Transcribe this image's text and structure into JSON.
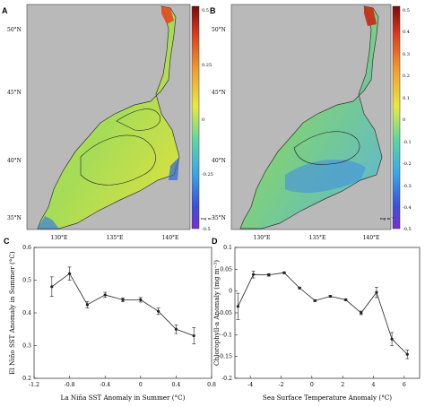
{
  "panels": {
    "A": {
      "letter": "A",
      "lat_labels": [
        "50°N",
        "45°N",
        "40°N",
        "35°N"
      ],
      "lon_labels": [
        "130°E",
        "135°E",
        "140°E"
      ],
      "colorbar": {
        "ticks": [
          "0.5",
          "0.25",
          "0",
          "-0.25",
          "-0.5"
        ],
        "unit": "mg m⁻³"
      },
      "map_type": "chlorophyll-anomaly-map"
    },
    "B": {
      "letter": "B",
      "lat_labels": [
        "50°N",
        "45°N",
        "40°N",
        "35°N"
      ],
      "lon_labels": [
        "130°E",
        "135°E",
        "140°E"
      ],
      "colorbar": {
        "ticks": [
          "0.5",
          "0.4",
          "0.3",
          "0.2",
          "0.1",
          "0",
          "-0.1",
          "-0.2",
          "-0.3",
          "-0.4",
          "-0.5"
        ],
        "unit": "mg m⁻³"
      },
      "map_type": "chlorophyll-anomaly-map"
    },
    "C": {
      "letter": "C"
    },
    "D": {
      "letter": "D"
    }
  },
  "colors": {
    "sea_low": "#3b55d9",
    "sea_mid": "#e6e83a",
    "sea_high": "#9c1d12",
    "land": "#b7b7b7",
    "line": "#222222"
  },
  "chart_data": [
    {
      "type": "line",
      "panel": "C",
      "xlabel": "La Niña SST Anomaly in Summer (°C)",
      "ylabel": "El Niño SST Anomaly in Summer (°C)",
      "xlim": [
        -1.2,
        0.8
      ],
      "ylim": [
        0.2,
        0.6
      ],
      "xticks": [
        "-1.2",
        "-0.8",
        "-0.4",
        "0",
        "0.4",
        "0.8"
      ],
      "yticks": [
        "0.6",
        "0.5",
        "0.4",
        "0.3",
        "0.2"
      ],
      "x": [
        -1.0,
        -0.8,
        -0.6,
        -0.4,
        -0.2,
        0.0,
        0.2,
        0.4,
        0.6
      ],
      "values": [
        0.48,
        0.52,
        0.425,
        0.455,
        0.44,
        0.44,
        0.405,
        0.35,
        0.33
      ],
      "errors": [
        0.03,
        0.02,
        0.01,
        0.008,
        0.006,
        0.007,
        0.01,
        0.013,
        0.025
      ]
    },
    {
      "type": "line",
      "panel": "D",
      "xlabel": "Sea Surface Temperature Anomaly (°C)",
      "ylabel": "Chlorophyll-a Anomaly (mg m⁻³)",
      "xlim": [
        -5,
        7
      ],
      "ylim": [
        -0.2,
        0.1
      ],
      "xticks": [
        "-4",
        "-2",
        "0",
        "2",
        "4",
        "6"
      ],
      "yticks": [
        "0.1",
        "0.05",
        "0",
        "-0.05",
        "-0.1",
        "-0.15",
        "-0.2"
      ],
      "x": [
        -4.8,
        -3.8,
        -2.8,
        -1.8,
        -0.8,
        0.2,
        1.2,
        2.2,
        3.2,
        4.2,
        5.2,
        6.2
      ],
      "values": [
        -0.035,
        0.038,
        0.037,
        0.042,
        0.007,
        -0.022,
        -0.012,
        -0.02,
        -0.05,
        -0.003,
        -0.11,
        -0.145
      ],
      "errors": [
        0.03,
        0.008,
        0.003,
        0.002,
        0.002,
        0.002,
        0.002,
        0.002,
        0.004,
        0.012,
        0.015,
        0.01
      ]
    }
  ]
}
